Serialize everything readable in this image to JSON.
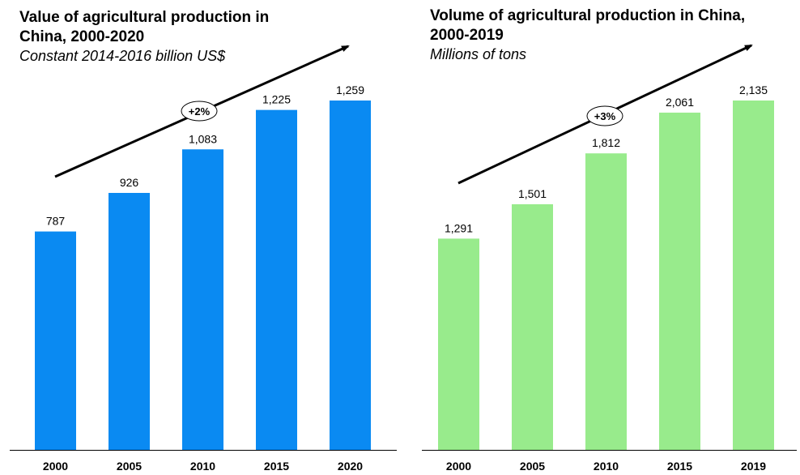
{
  "chart_data": [
    {
      "type": "bar",
      "title": "Value of agricultural production in\nChina, 2000-2020",
      "subtitle": "Constant 2014-2016 billion US$",
      "categories": [
        "2000",
        "2005",
        "2010",
        "2015",
        "2020"
      ],
      "values": [
        787,
        926,
        1083,
        1225,
        1259
      ],
      "value_labels": [
        "787",
        "926",
        "1,083",
        "1,225",
        "1,259"
      ],
      "annotation": "+2%",
      "color": "#0A8AF2",
      "ylim": [
        0,
        1300
      ],
      "grid": false,
      "legend": "none"
    },
    {
      "type": "bar",
      "title": "Volume of agricultural production in China,\n2000-2019",
      "subtitle": "Millions of tons",
      "categories": [
        "2000",
        "2005",
        "2010",
        "2015",
        "2019"
      ],
      "values": [
        1291,
        1501,
        1812,
        2061,
        2135
      ],
      "value_labels": [
        "1,291",
        "1,501",
        "1,812",
        "2,061",
        "2,135"
      ],
      "annotation": "+3%",
      "color": "#98EB8C",
      "ylim": [
        0,
        2200
      ],
      "grid": false,
      "legend": "none"
    }
  ]
}
